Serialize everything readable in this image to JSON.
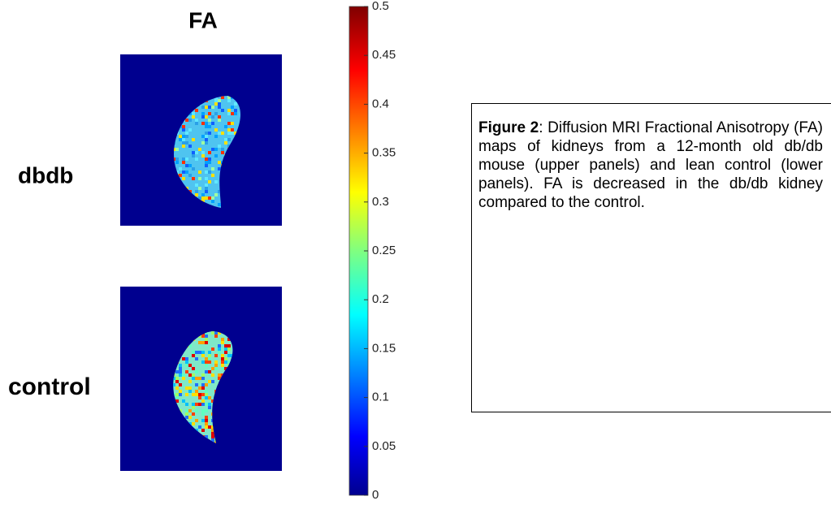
{
  "figure": {
    "title": "FA",
    "rows": [
      "dbdb",
      "control"
    ],
    "colorbar": {
      "lim": [
        0,
        0.5
      ],
      "ticks": [
        0,
        0.05,
        0.1,
        0.15,
        0.2,
        0.25,
        0.3,
        0.35,
        0.4,
        0.45,
        0.5
      ]
    }
  },
  "caption": {
    "label": "Figure 2",
    "text": ":  Diffusion MRI Fractional Anisotropy (FA) maps of kidneys from a 12-month old db/db mouse (upper panels) and lean control (lower panels). FA is decreased in the db/db kidney compared to the control."
  }
}
